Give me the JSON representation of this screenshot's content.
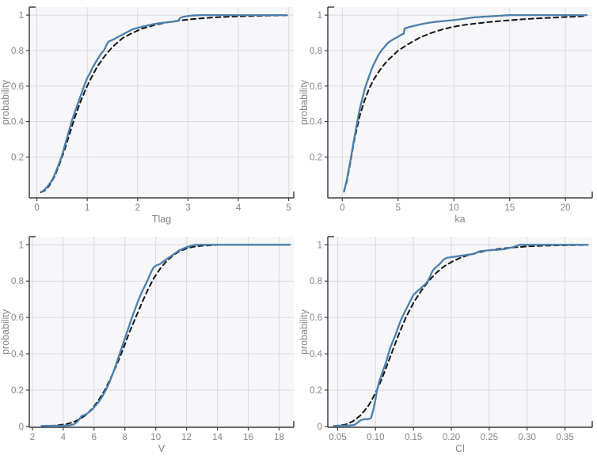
{
  "figure": {
    "background": "#ffffff",
    "panel_background": "#f7f7f9",
    "grid_color": "#d9d9dc",
    "axis_color": "#3f3f3f",
    "tick_text_color": "#848484",
    "label_text_color": "#848484",
    "empirical_color": "#4a7fae",
    "theoretical_color": "#141414"
  },
  "chart_data": [
    {
      "type": "line",
      "title": "",
      "xlabel": "Tlag",
      "ylabel": "probability",
      "xlim": [
        -0.15,
        5.1
      ],
      "ylim": [
        -0.03,
        1.045
      ],
      "xticks": [
        0,
        1,
        2,
        3,
        4,
        5
      ],
      "xtick_labels": [
        "0",
        "1",
        "2",
        "3",
        "4",
        "5"
      ],
      "yticks": [
        0.2,
        0.4,
        0.6,
        0.8,
        1
      ],
      "ytick_labels": [
        "0.2",
        "0.4",
        "0.6",
        "0.8",
        "1"
      ],
      "grid": true,
      "legend": "none",
      "series": [
        {
          "name": "theoretical-cdf",
          "style": "dashed",
          "x": [
            0.08,
            0.15,
            0.25,
            0.35,
            0.45,
            0.55,
            0.65,
            0.75,
            0.85,
            0.95,
            1.05,
            1.2,
            1.35,
            1.5,
            1.7,
            1.9,
            2.1,
            2.35,
            2.6,
            2.85,
            3.1,
            3.5,
            4.0,
            4.5,
            5.0
          ],
          "y": [
            0.002,
            0.01,
            0.04,
            0.09,
            0.16,
            0.24,
            0.33,
            0.42,
            0.5,
            0.57,
            0.63,
            0.71,
            0.77,
            0.82,
            0.87,
            0.9,
            0.925,
            0.945,
            0.96,
            0.97,
            0.978,
            0.987,
            0.993,
            0.997,
            0.999
          ]
        },
        {
          "name": "empirical-cdf",
          "style": "solid",
          "x": [
            0.1,
            0.15,
            0.2,
            0.28,
            0.33,
            0.38,
            0.45,
            0.5,
            0.55,
            0.6,
            0.65,
            0.7,
            0.75,
            0.8,
            0.85,
            0.9,
            0.95,
            1.0,
            1.05,
            1.1,
            1.2,
            1.28,
            1.33,
            1.38,
            1.42,
            1.5,
            1.6,
            1.7,
            1.8,
            1.9,
            2.0,
            2.1,
            2.2,
            2.3,
            2.4,
            2.5,
            2.6,
            2.7,
            2.8,
            2.85,
            2.9,
            3.0,
            3.1,
            3.3,
            3.6,
            4.0,
            4.5,
            4.95
          ],
          "y": [
            0.005,
            0.015,
            0.03,
            0.06,
            0.085,
            0.12,
            0.17,
            0.21,
            0.26,
            0.31,
            0.36,
            0.41,
            0.45,
            0.49,
            0.53,
            0.57,
            0.61,
            0.645,
            0.67,
            0.7,
            0.75,
            0.785,
            0.8,
            0.83,
            0.85,
            0.86,
            0.875,
            0.89,
            0.905,
            0.92,
            0.928,
            0.935,
            0.942,
            0.948,
            0.953,
            0.957,
            0.96,
            0.963,
            0.967,
            0.985,
            0.99,
            0.995,
            0.998,
            1.0,
            1.0,
            1.0,
            1.0,
            1.0
          ]
        }
      ]
    },
    {
      "type": "line",
      "title": "",
      "xlabel": "ka",
      "ylabel": "probability",
      "xlim": [
        -1.3,
        22.4
      ],
      "ylim": [
        -0.03,
        1.045
      ],
      "xticks": [
        0,
        5,
        10,
        15,
        20
      ],
      "xtick_labels": [
        "0",
        "5",
        "10",
        "15",
        "20"
      ],
      "yticks": [
        0.2,
        0.4,
        0.6,
        0.8,
        1
      ],
      "ytick_labels": [
        "0.2",
        "0.4",
        "0.6",
        "0.8",
        "1"
      ],
      "grid": true,
      "legend": "none",
      "series": [
        {
          "name": "theoretical-cdf",
          "style": "dashed",
          "x": [
            0.15,
            0.4,
            0.7,
            1.0,
            1.3,
            1.6,
            2.0,
            2.4,
            2.8,
            3.2,
            3.6,
            4.0,
            4.5,
            5.0,
            5.5,
            6.0,
            7.0,
            8.0,
            9.0,
            10,
            11,
            12,
            13,
            14,
            15,
            16,
            17,
            18,
            19,
            20,
            21,
            21.9
          ],
          "y": [
            0.005,
            0.06,
            0.16,
            0.27,
            0.36,
            0.44,
            0.52,
            0.585,
            0.635,
            0.675,
            0.71,
            0.74,
            0.77,
            0.8,
            0.82,
            0.84,
            0.875,
            0.9,
            0.92,
            0.935,
            0.945,
            0.953,
            0.96,
            0.966,
            0.971,
            0.976,
            0.98,
            0.983,
            0.986,
            0.989,
            0.992,
            0.995
          ]
        },
        {
          "name": "empirical-cdf",
          "style": "solid",
          "x": [
            0.15,
            0.4,
            0.7,
            1.0,
            1.2,
            1.4,
            1.6,
            1.8,
            2.0,
            2.2,
            2.4,
            2.6,
            2.8,
            3.0,
            3.2,
            3.5,
            3.8,
            4.0,
            4.3,
            4.6,
            5.0,
            5.3,
            5.5,
            5.6,
            6.0,
            6.5,
            7.0,
            7.5,
            8.0,
            8.5,
            9.0,
            9.5,
            10,
            10.5,
            11,
            11.5,
            12,
            12.5,
            13,
            13.5,
            14,
            14.5,
            15,
            16,
            18,
            20,
            21.9
          ],
          "y": [
            0.005,
            0.07,
            0.17,
            0.28,
            0.35,
            0.42,
            0.48,
            0.53,
            0.58,
            0.62,
            0.655,
            0.69,
            0.72,
            0.745,
            0.77,
            0.8,
            0.822,
            0.838,
            0.853,
            0.865,
            0.878,
            0.89,
            0.895,
            0.925,
            0.933,
            0.94,
            0.948,
            0.954,
            0.959,
            0.963,
            0.966,
            0.969,
            0.972,
            0.976,
            0.98,
            0.985,
            0.988,
            0.99,
            0.992,
            0.994,
            0.996,
            0.998,
            1.0,
            1.0,
            1.0,
            1.0,
            1.0
          ]
        }
      ]
    },
    {
      "type": "line",
      "title": "",
      "xlabel": "V",
      "ylabel": "probability",
      "xlim": [
        1.8,
        18.95
      ],
      "ylim": [
        -0.005,
        1.045
      ],
      "xticks": [
        2,
        4,
        6,
        8,
        10,
        12,
        14,
        16,
        18
      ],
      "xtick_labels": [
        "2",
        "4",
        "6",
        "8",
        "10",
        "12",
        "14",
        "16",
        "18"
      ],
      "yticks": [
        0,
        0.2,
        0.4,
        0.6,
        0.8,
        1
      ],
      "ytick_labels": [
        "0",
        "0.2",
        "0.4",
        "0.6",
        "0.8",
        "1"
      ],
      "grid": true,
      "legend": "none",
      "series": [
        {
          "name": "theoretical-cdf",
          "style": "dashed",
          "x": [
            2.6,
            3.5,
            4.2,
            4.7,
            5.1,
            5.5,
            5.9,
            6.3,
            6.7,
            7.1,
            7.5,
            7.9,
            8.3,
            8.7,
            9.1,
            9.5,
            9.9,
            10.3,
            10.7,
            11.1,
            11.5,
            12.0,
            12.5,
            13.0,
            14.0,
            15.0,
            18.7
          ],
          "y": [
            0.001,
            0.005,
            0.013,
            0.025,
            0.042,
            0.065,
            0.1,
            0.145,
            0.2,
            0.27,
            0.345,
            0.43,
            0.52,
            0.6,
            0.68,
            0.755,
            0.82,
            0.87,
            0.91,
            0.94,
            0.963,
            0.98,
            0.99,
            0.995,
            0.999,
            1.0,
            1.0
          ]
        },
        {
          "name": "empirical-cdf",
          "style": "solid",
          "x": [
            2.6,
            4.0,
            4.4,
            4.7,
            4.9,
            5.05,
            5.2,
            5.35,
            5.5,
            5.7,
            5.9,
            6.1,
            6.3,
            6.5,
            6.7,
            6.9,
            7.1,
            7.3,
            7.5,
            7.7,
            7.9,
            8.1,
            8.3,
            8.5,
            8.7,
            8.9,
            9.1,
            9.3,
            9.5,
            9.7,
            9.85,
            10.0,
            10.3,
            10.6,
            10.9,
            11.2,
            11.5,
            11.8,
            12.1,
            12.4,
            12.6,
            13.0,
            18.7
          ],
          "y": [
            0.003,
            0.004,
            0.006,
            0.012,
            0.025,
            0.04,
            0.058,
            0.062,
            0.068,
            0.08,
            0.095,
            0.115,
            0.135,
            0.16,
            0.19,
            0.225,
            0.265,
            0.31,
            0.36,
            0.41,
            0.46,
            0.51,
            0.56,
            0.61,
            0.655,
            0.7,
            0.74,
            0.775,
            0.81,
            0.85,
            0.875,
            0.885,
            0.895,
            0.915,
            0.932,
            0.95,
            0.968,
            0.98,
            0.99,
            0.997,
            1.0,
            1.0,
            1.0
          ]
        }
      ]
    },
    {
      "type": "line",
      "title": "",
      "xlabel": "Cl",
      "ylabel": "probability",
      "xlim": [
        0.037,
        0.386
      ],
      "ylim": [
        -0.005,
        1.045
      ],
      "xticks": [
        0.05,
        0.1,
        0.15,
        0.2,
        0.25,
        0.3,
        0.35
      ],
      "xtick_labels": [
        "0.05",
        "0.10",
        "0.15",
        "0.20",
        "0.25",
        "0.30",
        "0.35"
      ],
      "yticks": [
        0,
        0.2,
        0.4,
        0.6,
        0.8,
        1
      ],
      "ytick_labels": [
        "0",
        "0.2",
        "0.4",
        "0.6",
        "0.8",
        "1"
      ],
      "grid": true,
      "legend": "none",
      "series": [
        {
          "name": "theoretical-cdf",
          "style": "dashed",
          "x": [
            0.045,
            0.06,
            0.07,
            0.08,
            0.09,
            0.095,
            0.1,
            0.105,
            0.11,
            0.115,
            0.12,
            0.125,
            0.13,
            0.135,
            0.14,
            0.145,
            0.15,
            0.16,
            0.17,
            0.18,
            0.19,
            0.2,
            0.21,
            0.22,
            0.23,
            0.24,
            0.25,
            0.26,
            0.27,
            0.28,
            0.29,
            0.3,
            0.32,
            0.34,
            0.36,
            0.38
          ],
          "y": [
            0.001,
            0.01,
            0.028,
            0.06,
            0.11,
            0.145,
            0.185,
            0.23,
            0.28,
            0.335,
            0.39,
            0.445,
            0.5,
            0.55,
            0.6,
            0.64,
            0.68,
            0.745,
            0.8,
            0.845,
            0.88,
            0.905,
            0.925,
            0.94,
            0.952,
            0.962,
            0.97,
            0.976,
            0.981,
            0.985,
            0.988,
            0.991,
            0.995,
            0.997,
            0.998,
            0.999
          ]
        },
        {
          "name": "empirical-cdf",
          "style": "solid",
          "x": [
            0.045,
            0.065,
            0.072,
            0.076,
            0.08,
            0.085,
            0.09,
            0.094,
            0.097,
            0.1,
            0.102,
            0.105,
            0.108,
            0.111,
            0.114,
            0.117,
            0.12,
            0.123,
            0.126,
            0.129,
            0.132,
            0.135,
            0.138,
            0.141,
            0.144,
            0.147,
            0.15,
            0.154,
            0.158,
            0.162,
            0.166,
            0.169,
            0.172,
            0.175,
            0.178,
            0.182,
            0.186,
            0.19,
            0.194,
            0.2,
            0.21,
            0.22,
            0.23,
            0.236,
            0.24,
            0.25,
            0.26,
            0.27,
            0.276,
            0.282,
            0.29,
            0.3,
            0.38
          ],
          "y": [
            0.003,
            0.005,
            0.008,
            0.02,
            0.033,
            0.04,
            0.04,
            0.045,
            0.09,
            0.15,
            0.2,
            0.25,
            0.285,
            0.32,
            0.355,
            0.4,
            0.44,
            0.47,
            0.5,
            0.535,
            0.57,
            0.6,
            0.625,
            0.65,
            0.675,
            0.7,
            0.725,
            0.74,
            0.755,
            0.77,
            0.785,
            0.8,
            0.825,
            0.855,
            0.87,
            0.885,
            0.9,
            0.92,
            0.928,
            0.932,
            0.938,
            0.944,
            0.95,
            0.962,
            0.966,
            0.97,
            0.972,
            0.976,
            0.982,
            0.988,
            1.0,
            1.0,
            1.0
          ]
        }
      ]
    }
  ]
}
